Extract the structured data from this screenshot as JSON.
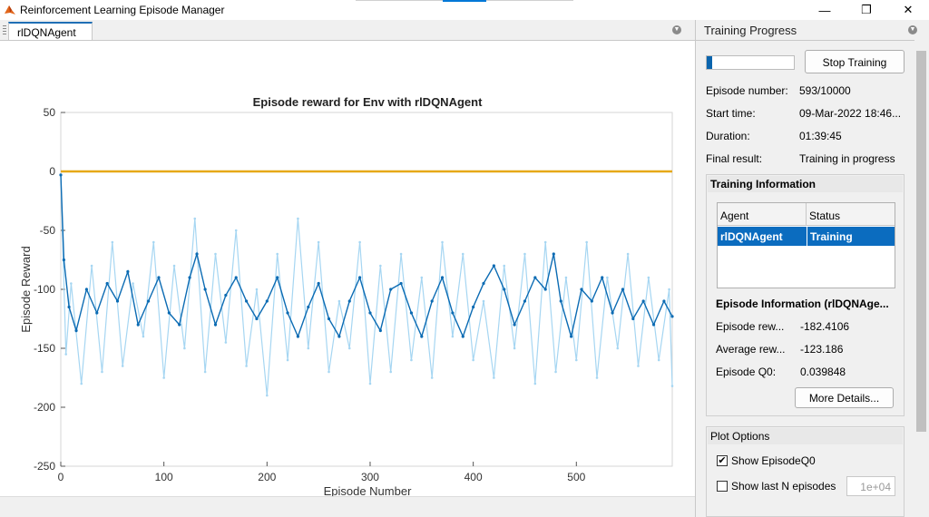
{
  "window": {
    "title": "Reinforcement Learning Episode Manager",
    "minimize_glyph": "—",
    "maximize_glyph": "❐",
    "close_glyph": "✕",
    "icon": "matlab-icon"
  },
  "tab": {
    "label": "rlDQNAgent"
  },
  "chart_data": {
    "type": "line",
    "title": "Episode reward for Env with rlDQNAgent",
    "xlabel": "Episode Number",
    "ylabel": "Episode Reward",
    "xlim": [
      0,
      593
    ],
    "ylim": [
      -250,
      50
    ],
    "xticks": [
      "0",
      "100",
      "200",
      "300",
      "400",
      "500"
    ],
    "yticks": [
      "50",
      "0",
      "-50",
      "-100",
      "-150",
      "-200",
      "-250"
    ],
    "grid": false,
    "legend": "none",
    "colors": {
      "raw": "#a6d6f2",
      "average": "#0b6bb3",
      "q0": "#e6a817"
    },
    "series": [
      {
        "role": "episode-reward",
        "points": [
          [
            0,
            -3
          ],
          [
            5,
            -155
          ],
          [
            10,
            -95
          ],
          [
            20,
            -180
          ],
          [
            30,
            -80
          ],
          [
            40,
            -170
          ],
          [
            50,
            -60
          ],
          [
            60,
            -165
          ],
          [
            70,
            -95
          ],
          [
            80,
            -140
          ],
          [
            90,
            -60
          ],
          [
            100,
            -175
          ],
          [
            110,
            -80
          ],
          [
            120,
            -150
          ],
          [
            130,
            -40
          ],
          [
            140,
            -170
          ],
          [
            150,
            -70
          ],
          [
            160,
            -145
          ],
          [
            170,
            -50
          ],
          [
            180,
            -165
          ],
          [
            190,
            -100
          ],
          [
            200,
            -190
          ],
          [
            210,
            -70
          ],
          [
            220,
            -160
          ],
          [
            230,
            -40
          ],
          [
            240,
            -150
          ],
          [
            250,
            -60
          ],
          [
            260,
            -170
          ],
          [
            270,
            -110
          ],
          [
            280,
            -150
          ],
          [
            290,
            -60
          ],
          [
            300,
            -180
          ],
          [
            310,
            -80
          ],
          [
            320,
            -170
          ],
          [
            330,
            -70
          ],
          [
            340,
            -160
          ],
          [
            350,
            -90
          ],
          [
            360,
            -175
          ],
          [
            370,
            -60
          ],
          [
            380,
            -140
          ],
          [
            390,
            -70
          ],
          [
            400,
            -160
          ],
          [
            410,
            -110
          ],
          [
            420,
            -175
          ],
          [
            430,
            -80
          ],
          [
            440,
            -150
          ],
          [
            450,
            -70
          ],
          [
            460,
            -180
          ],
          [
            470,
            -60
          ],
          [
            480,
            -170
          ],
          [
            490,
            -90
          ],
          [
            500,
            -160
          ],
          [
            510,
            -60
          ],
          [
            520,
            -175
          ],
          [
            530,
            -90
          ],
          [
            540,
            -150
          ],
          [
            550,
            -70
          ],
          [
            560,
            -165
          ],
          [
            570,
            -90
          ],
          [
            580,
            -160
          ],
          [
            590,
            -100
          ],
          [
            593,
            -182
          ]
        ]
      },
      {
        "role": "average-reward",
        "points": [
          [
            0,
            -3
          ],
          [
            3,
            -75
          ],
          [
            8,
            -115
          ],
          [
            15,
            -135
          ],
          [
            25,
            -100
          ],
          [
            35,
            -120
          ],
          [
            45,
            -95
          ],
          [
            55,
            -110
          ],
          [
            65,
            -85
          ],
          [
            75,
            -130
          ],
          [
            85,
            -110
          ],
          [
            95,
            -90
          ],
          [
            105,
            -120
          ],
          [
            115,
            -130
          ],
          [
            125,
            -90
          ],
          [
            132,
            -70
          ],
          [
            140,
            -100
          ],
          [
            150,
            -130
          ],
          [
            160,
            -105
          ],
          [
            170,
            -90
          ],
          [
            180,
            -110
          ],
          [
            190,
            -125
          ],
          [
            200,
            -110
          ],
          [
            210,
            -90
          ],
          [
            220,
            -120
          ],
          [
            230,
            -140
          ],
          [
            240,
            -115
          ],
          [
            250,
            -95
          ],
          [
            260,
            -125
          ],
          [
            270,
            -140
          ],
          [
            280,
            -110
          ],
          [
            290,
            -90
          ],
          [
            300,
            -120
          ],
          [
            310,
            -135
          ],
          [
            320,
            -100
          ],
          [
            330,
            -95
          ],
          [
            340,
            -120
          ],
          [
            350,
            -140
          ],
          [
            360,
            -110
          ],
          [
            370,
            -90
          ],
          [
            380,
            -120
          ],
          [
            390,
            -140
          ],
          [
            400,
            -115
          ],
          [
            410,
            -95
          ],
          [
            420,
            -80
          ],
          [
            430,
            -100
          ],
          [
            440,
            -130
          ],
          [
            450,
            -110
          ],
          [
            460,
            -90
          ],
          [
            470,
            -100
          ],
          [
            478,
            -70
          ],
          [
            485,
            -110
          ],
          [
            495,
            -140
          ],
          [
            505,
            -100
          ],
          [
            515,
            -110
          ],
          [
            525,
            -90
          ],
          [
            535,
            -120
          ],
          [
            545,
            -100
          ],
          [
            555,
            -125
          ],
          [
            565,
            -110
          ],
          [
            575,
            -130
          ],
          [
            585,
            -110
          ],
          [
            593,
            -123
          ]
        ]
      },
      {
        "role": "episode-q0",
        "points": [
          [
            0,
            0
          ],
          [
            100,
            0
          ],
          [
            200,
            0
          ],
          [
            300,
            0
          ],
          [
            400,
            0
          ],
          [
            500,
            0
          ],
          [
            593,
            0
          ]
        ]
      }
    ]
  },
  "progress": {
    "title": "Training Progress",
    "fraction": 0.0593,
    "stop_label": "Stop Training",
    "episode_number_label": "Episode number:",
    "episode_number_value": "593/10000",
    "start_time_label": "Start time:",
    "start_time_value": "09-Mar-2022 18:46...",
    "duration_label": "Duration:",
    "duration_value": "01:39:45",
    "final_result_label": "Final result:",
    "final_result_value": "Training in progress"
  },
  "training_info": {
    "title": "Training Information",
    "col_agent": "Agent",
    "col_status": "Status",
    "row_agent": "rlDQNAgent",
    "row_status": "Training"
  },
  "episode_info": {
    "title": "Episode Information (rlDQNAge...",
    "reward_label": "Episode rew...",
    "reward_value": "-182.4106",
    "avg_label": "Average rew...",
    "avg_value": "-123.186",
    "q0_label": "Episode Q0:",
    "q0_value": "0.039848",
    "more_label": "More Details..."
  },
  "plot_options": {
    "title": "Plot Options",
    "show_q0_label": "Show EpisodeQ0",
    "show_q0_checked": "✔",
    "show_last_label": "Show last N episodes",
    "last_n_value": "1e+04"
  }
}
